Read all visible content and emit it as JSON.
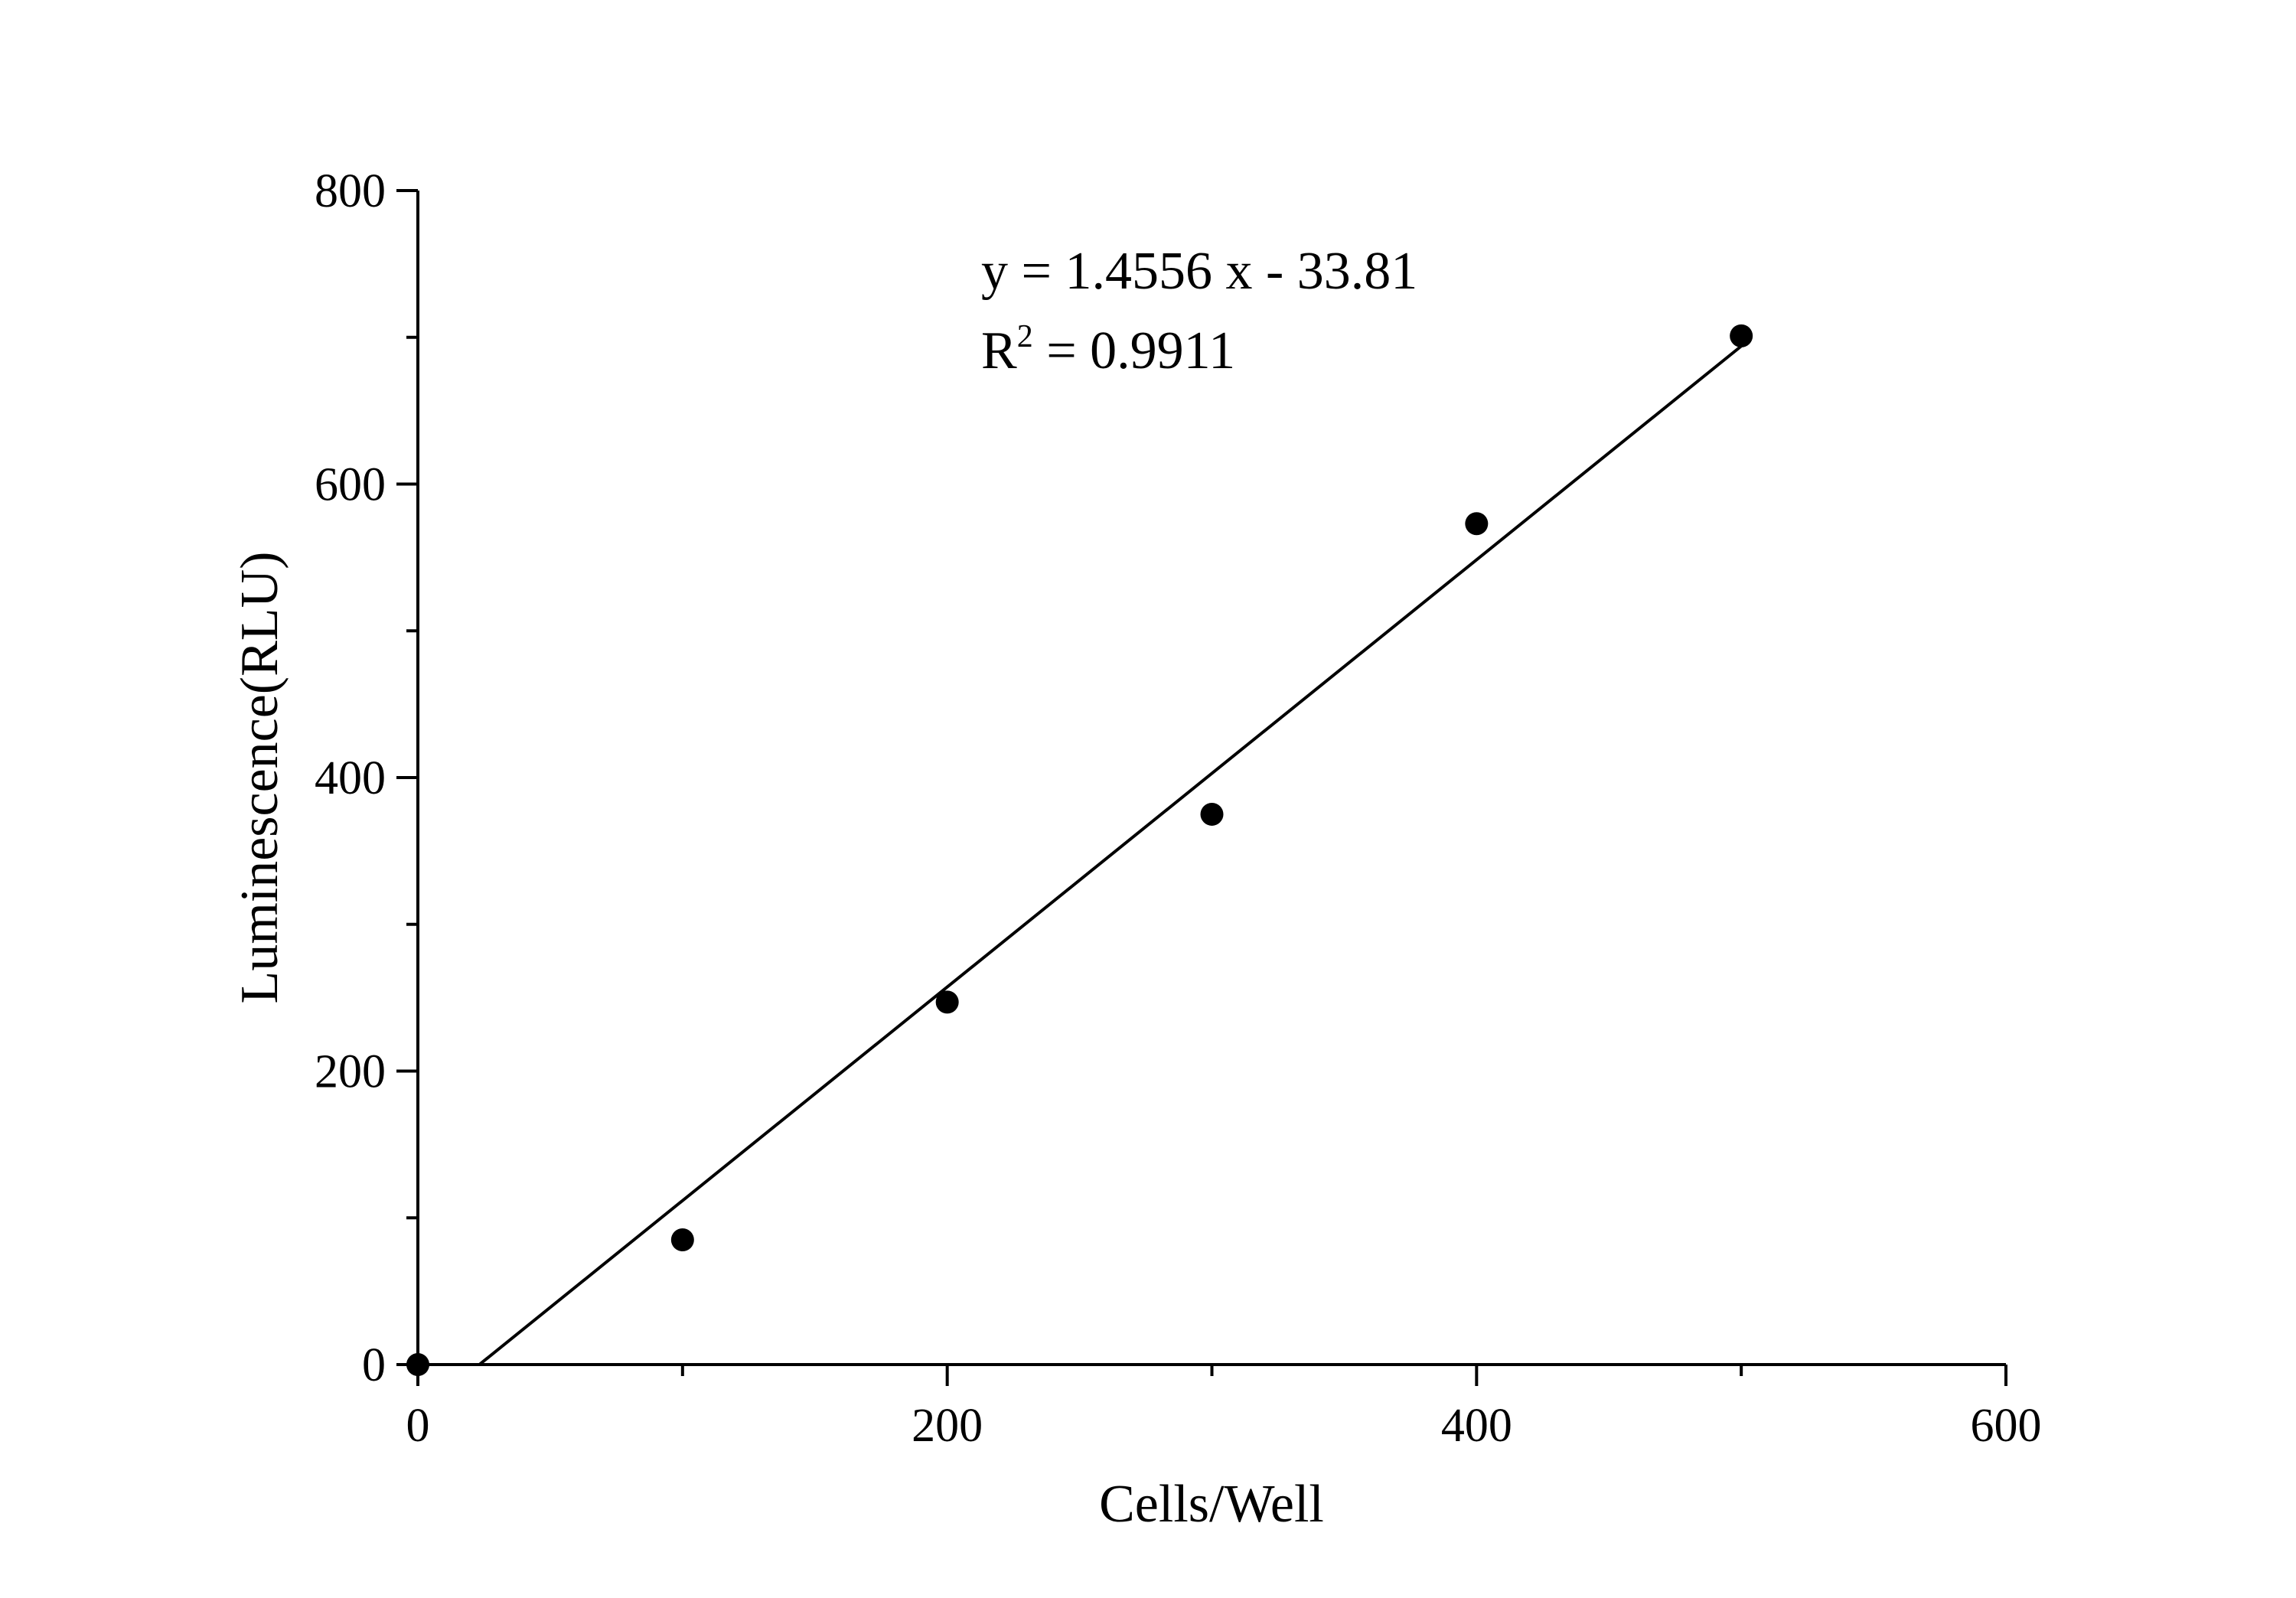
{
  "chart_data": {
    "type": "scatter",
    "x_label": "Cells/Well",
    "y_label": "Luminescence(RLU)",
    "annotations": [
      "y = 1.4556 x - 33.81",
      [
        "R",
        "2",
        " = 0.9911"
      ]
    ],
    "series": [
      {
        "name": "data",
        "type": "scatter",
        "color": "#000000",
        "x": [
          0,
          100,
          200,
          300,
          400,
          500
        ],
        "values": [
          0,
          85,
          247,
          375,
          573,
          701
        ]
      },
      {
        "name": "fit",
        "type": "line",
        "color": "#000000",
        "x": [
          23.23,
          500
        ],
        "values": [
          0,
          694
        ]
      }
    ],
    "xlim": [
      0,
      600
    ],
    "xticks": [
      0,
      200,
      400,
      600
    ],
    "xminor": [
      100,
      300,
      500
    ],
    "ylim": [
      0,
      800
    ],
    "yticks": [
      0,
      200,
      400,
      600,
      800
    ],
    "yminor": [
      100,
      300,
      500,
      700
    ]
  }
}
